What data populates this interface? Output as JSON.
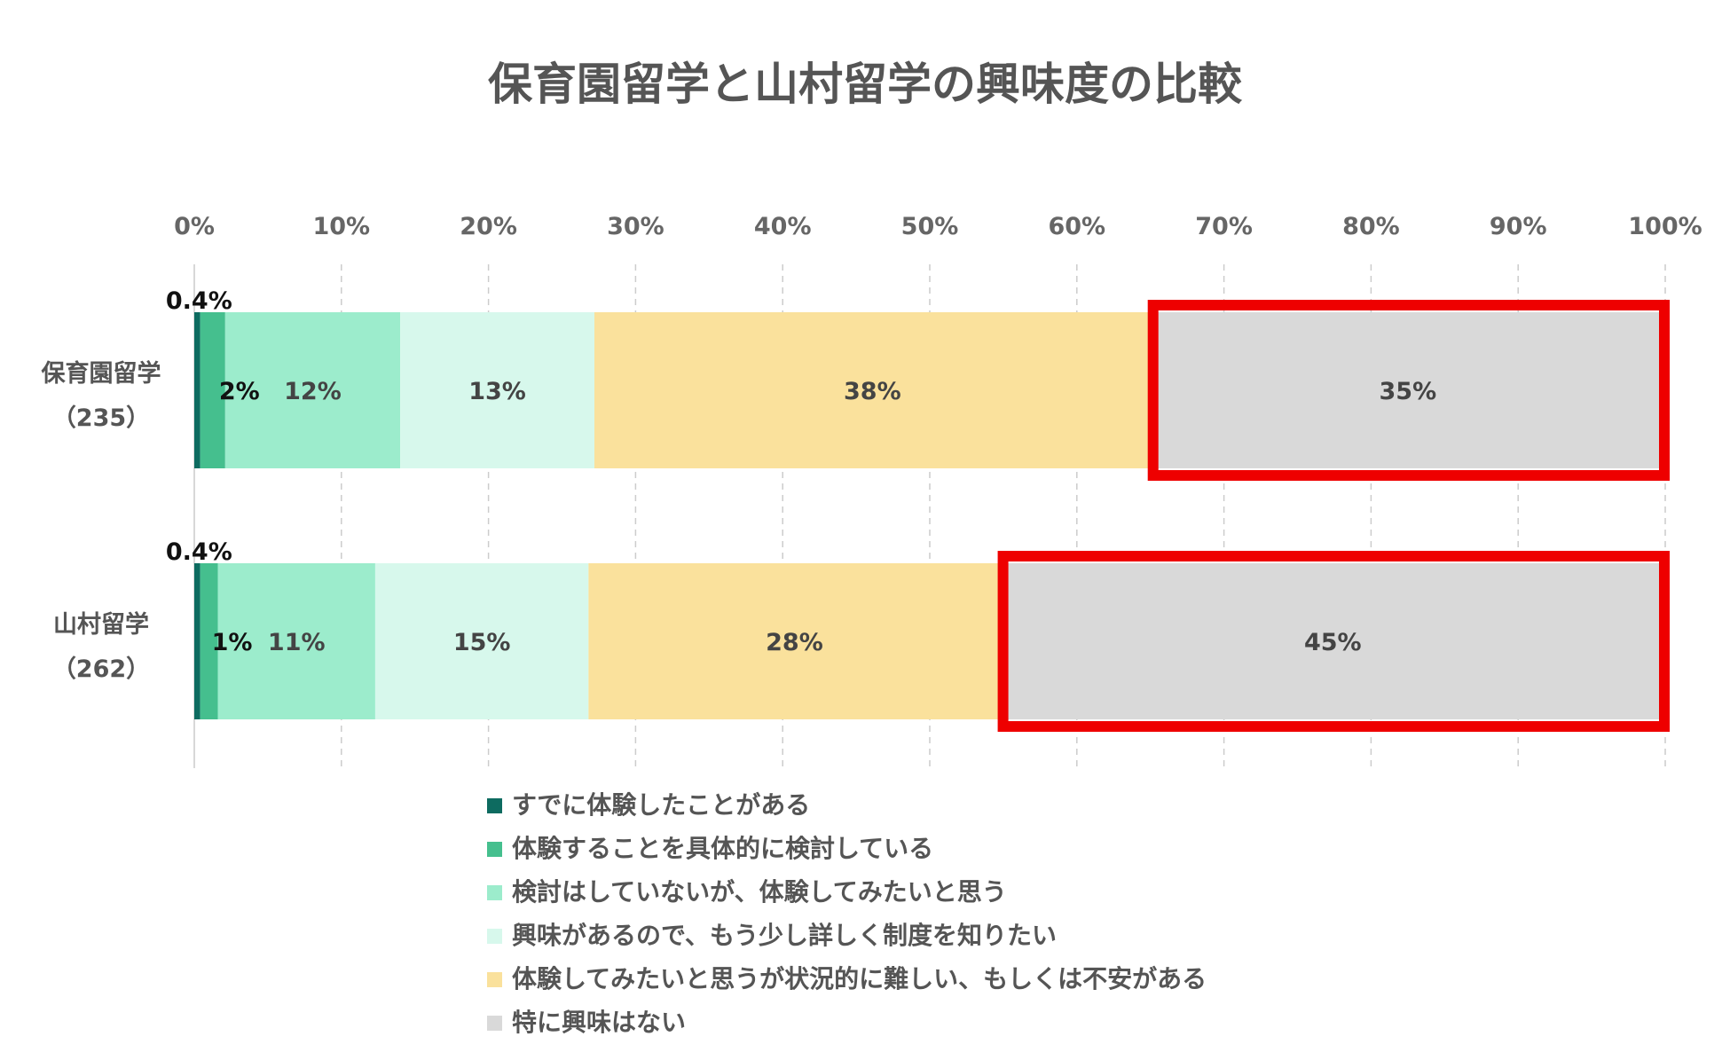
{
  "chart_data": {
    "type": "bar",
    "orientation": "horizontal",
    "stacked": true,
    "title": "保育園留学と山村留学の興味度の比較",
    "categories": [
      {
        "name": "保育園留学",
        "count": "（235）"
      },
      {
        "name": "山村留学",
        "count": "（262）"
      }
    ],
    "series": [
      {
        "name": "すでに体験したことがある",
        "color": "#0d6b60",
        "values": [
          0.4,
          0.4
        ],
        "labels": [
          "0.4%",
          "0.4%"
        ]
      },
      {
        "name": "体験することを具体的に検討している",
        "color": "#45bf8e",
        "values": [
          1.7,
          1.2
        ],
        "labels": [
          "2%",
          "1%"
        ]
      },
      {
        "name": "検討はしていないが、体験してみたいと思う",
        "color": "#9ceccc",
        "values": [
          11.9,
          10.7
        ],
        "labels": [
          "12%",
          "11%"
        ]
      },
      {
        "name": "興味があるので、もう少し詳しく制度を知りたい",
        "color": "#d7f8ec",
        "values": [
          13.2,
          14.5
        ],
        "labels": [
          "13%",
          "15%"
        ]
      },
      {
        "name": "体験してみたいと思うが状況的に難しい、もしくは不安がある",
        "color": "#fae19c",
        "values": [
          37.8,
          28.0
        ],
        "labels": [
          "38%",
          "28%"
        ]
      },
      {
        "name": "特に興味はない",
        "color": "#d9d9d9",
        "values": [
          35.0,
          45.2
        ],
        "labels": [
          "35%",
          "45%"
        ]
      }
    ],
    "xlim": [
      0,
      100
    ],
    "xticks": [
      "0%",
      "10%",
      "20%",
      "30%",
      "40%",
      "50%",
      "60%",
      "70%",
      "80%",
      "90%",
      "100%"
    ],
    "grid": true,
    "legend_position": "bottom",
    "highlight_series": "特に興味はない",
    "highlight_color": "#ee0000"
  }
}
